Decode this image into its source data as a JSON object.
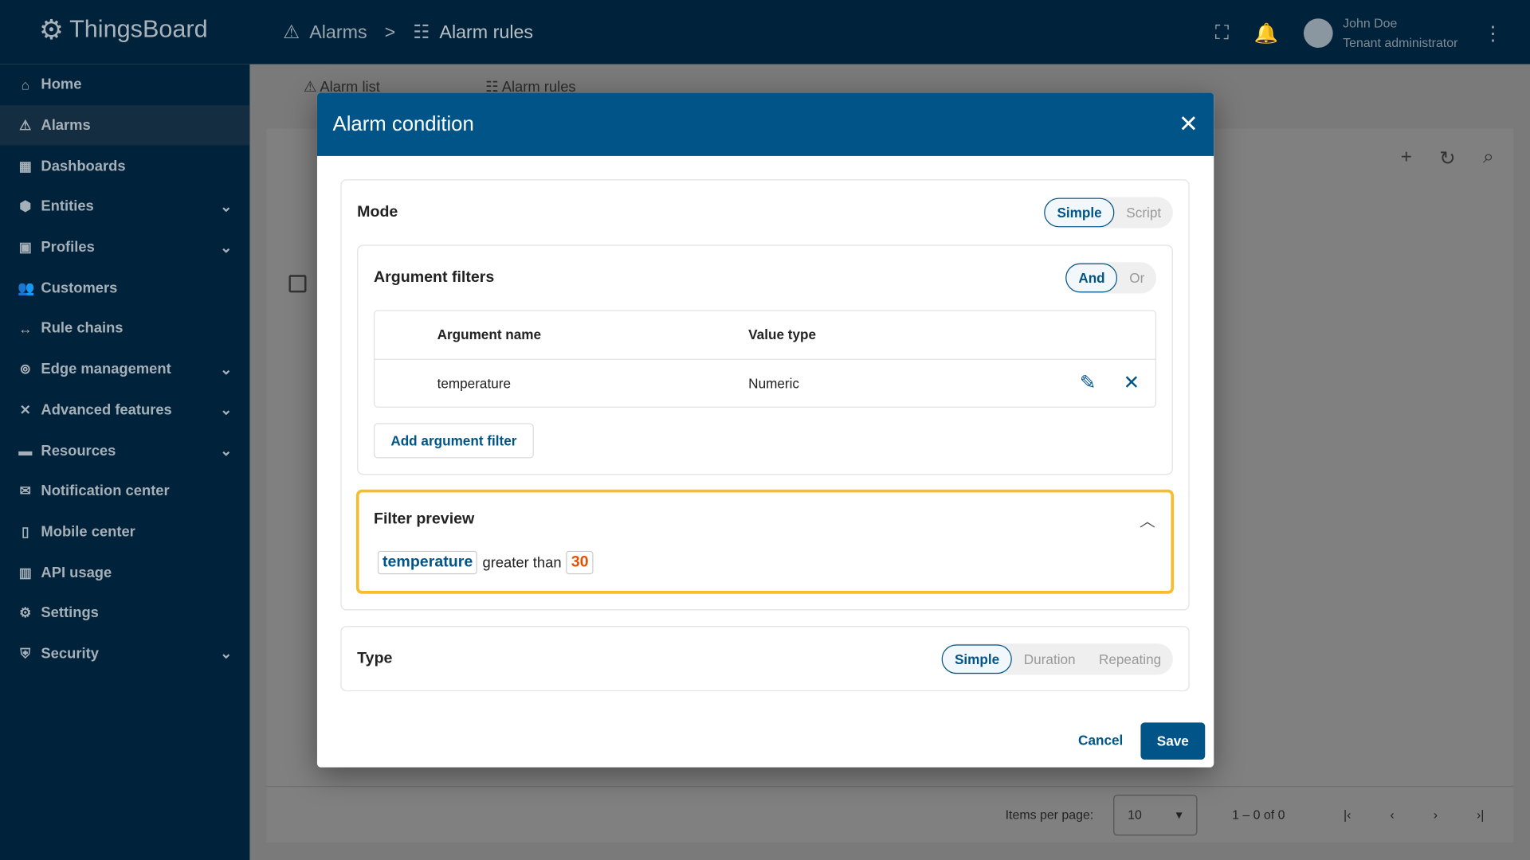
{
  "app": {
    "name": "ThingsBoard"
  },
  "breadcrumb": [
    {
      "label": "Alarms"
    },
    {
      "label": "Alarm rules"
    }
  ],
  "user": {
    "name": "John Doe",
    "role": "Tenant administrator"
  },
  "sidebar": {
    "items": [
      {
        "label": "Home",
        "icon": "home-icon"
      },
      {
        "label": "Alarms",
        "icon": "warning-icon",
        "selected": true
      },
      {
        "label": "Dashboards",
        "icon": "dashboard-icon"
      },
      {
        "label": "Entities",
        "icon": "entities-icon",
        "expand": true
      },
      {
        "label": "Profiles",
        "icon": "profiles-icon",
        "expand": true
      },
      {
        "label": "Customers",
        "icon": "customers-icon"
      },
      {
        "label": "Rule chains",
        "icon": "rule-chains-icon"
      },
      {
        "label": "Edge management",
        "icon": "edge-icon",
        "expand": true
      },
      {
        "label": "Advanced features",
        "icon": "tools-icon",
        "expand": true
      },
      {
        "label": "Resources",
        "icon": "folder-icon",
        "expand": true
      },
      {
        "label": "Notification center",
        "icon": "notification-icon"
      },
      {
        "label": "Mobile center",
        "icon": "mobile-icon"
      },
      {
        "label": "API usage",
        "icon": "chart-icon"
      },
      {
        "label": "Settings",
        "icon": "gear-icon"
      },
      {
        "label": "Security",
        "icon": "shield-icon",
        "expand": true
      }
    ]
  },
  "tabs": [
    {
      "label": "Alarm list"
    },
    {
      "label": "Alarm rules"
    }
  ],
  "paginator": {
    "items_per_page_label": "Items per page:",
    "items_per_page": "10",
    "range": "1 – 0 of 0"
  },
  "dialog": {
    "title": "Alarm condition",
    "mode": {
      "label": "Mode",
      "options": [
        "Simple",
        "Script"
      ],
      "selected": "Simple"
    },
    "argument_filters": {
      "label": "Argument filters",
      "operators": [
        "And",
        "Or"
      ],
      "selected": "And",
      "columns": [
        "Argument name",
        "Value type"
      ],
      "rows": [
        {
          "name": "temperature",
          "type": "Numeric"
        }
      ],
      "add_label": "Add argument filter"
    },
    "preview": {
      "label": "Filter preview",
      "argument": "temperature",
      "operation": "greater than",
      "value": "30",
      "highlight": "#f9bd2b",
      "value_color": "#e65100"
    },
    "type": {
      "label": "Type",
      "options": [
        "Simple",
        "Duration",
        "Repeating"
      ],
      "selected": "Simple"
    },
    "cancel_label": "Cancel",
    "save_label": "Save"
  }
}
